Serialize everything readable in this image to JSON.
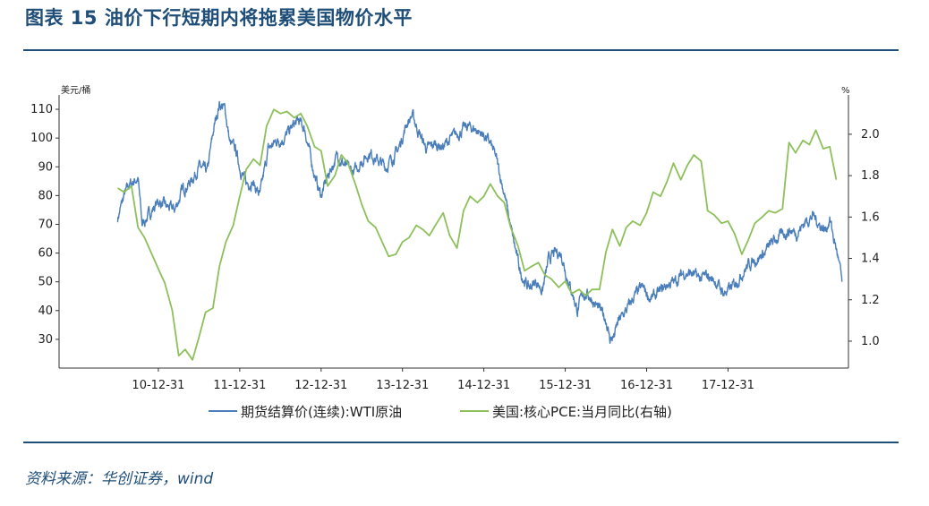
{
  "title": "图表 15  油价下行短期内将拖累美国物价水平",
  "source": "资料来源：华创证券，wind",
  "colors": {
    "title": "#1f4e79",
    "wti": "#4a7ebb",
    "pce": "#8dc05a",
    "axis": "#333333"
  },
  "chart_data": {
    "type": "line",
    "x_tick_labels": [
      "10-12-31",
      "11-12-31",
      "12-12-31",
      "13-12-31",
      "14-12-31",
      "15-12-31",
      "16-12-31",
      "17-12-31"
    ],
    "left_axis": {
      "unit": "美元/桶",
      "ylim": [
        20,
        115
      ],
      "ticks": [
        30,
        40,
        50,
        60,
        70,
        80,
        90,
        100,
        110
      ]
    },
    "right_axis": {
      "unit": "%",
      "ylim": [
        0.87,
        2.19
      ],
      "ticks": [
        "1.0",
        "1.2",
        "1.4",
        "1.6",
        "1.8",
        "2.0"
      ]
    },
    "series": [
      {
        "name": "期货结算价(连续):WTI原油",
        "axis": "left",
        "t": [
          2010.0,
          2010.08,
          2010.15,
          2010.25,
          2010.3,
          2010.4,
          2010.5,
          2010.6,
          2010.7,
          2010.8,
          2010.9,
          2011.0,
          2011.1,
          2011.18,
          2011.25,
          2011.32,
          2011.38,
          2011.45,
          2011.5,
          2011.58,
          2011.65,
          2011.75,
          2011.85,
          2011.95,
          2012.05,
          2012.15,
          2012.22,
          2012.3,
          2012.38,
          2012.45,
          2012.5,
          2012.6,
          2012.7,
          2012.8,
          2012.9,
          2013.0,
          2013.1,
          2013.2,
          2013.3,
          2013.45,
          2013.55,
          2013.62,
          2013.7,
          2013.8,
          2013.9,
          2014.0,
          2014.1,
          2014.2,
          2014.3,
          2014.4,
          2014.5,
          2014.58,
          2014.65,
          2014.75,
          2014.85,
          2014.95,
          2015.05,
          2015.15,
          2015.22,
          2015.3,
          2015.38,
          2015.45,
          2015.52,
          2015.6,
          2015.65,
          2015.72,
          2015.8,
          2015.9,
          2016.0,
          2016.05,
          2016.1,
          2016.15,
          2016.25,
          2016.35,
          2016.45,
          2016.55,
          2016.65,
          2016.75,
          2016.85,
          2016.95,
          2017.05,
          2017.15,
          2017.25,
          2017.35,
          2017.45,
          2017.55,
          2017.65,
          2017.75,
          2017.85,
          2017.95,
          2018.05,
          2018.15,
          2018.25,
          2018.35,
          2018.45,
          2018.55,
          2018.62,
          2018.7,
          2018.75,
          2018.8,
          2018.85,
          2018.9
        ],
        "values": [
          72,
          80,
          84,
          86,
          70,
          74,
          78,
          76,
          75,
          82,
          85,
          90,
          88,
          103,
          112,
          110,
          98,
          96,
          90,
          84,
          85,
          80,
          96,
          99,
          100,
          104,
          106,
          103,
          92,
          84,
          80,
          88,
          94,
          90,
          88,
          92,
          95,
          92,
          90,
          96,
          105,
          108,
          102,
          96,
          98,
          97,
          100,
          102,
          104,
          103,
          101,
          98,
          93,
          81,
          66,
          53,
          48,
          50,
          47,
          58,
          60,
          60,
          52,
          45,
          40,
          46,
          45,
          41,
          37,
          30,
          31,
          36,
          40,
          45,
          48,
          44,
          46,
          49,
          50,
          53,
          53,
          51,
          52,
          50,
          46,
          48,
          52,
          56,
          58,
          60,
          64,
          66,
          68,
          67,
          71,
          73,
          70,
          68,
          72,
          65,
          59,
          50
        ]
      },
      {
        "name": "美国:核心PCE:当月同比(右轴)",
        "axis": "right",
        "t": [
          2010.0,
          2010.08,
          2010.17,
          2010.25,
          2010.33,
          2010.42,
          2010.5,
          2010.58,
          2010.67,
          2010.75,
          2010.83,
          2010.92,
          2011.0,
          2011.08,
          2011.17,
          2011.25,
          2011.33,
          2011.42,
          2011.5,
          2011.58,
          2011.67,
          2011.75,
          2011.83,
          2011.92,
          2012.0,
          2012.08,
          2012.17,
          2012.25,
          2012.33,
          2012.42,
          2012.5,
          2012.58,
          2012.67,
          2012.75,
          2012.83,
          2012.92,
          2013.0,
          2013.08,
          2013.17,
          2013.25,
          2013.33,
          2013.42,
          2013.5,
          2013.58,
          2013.67,
          2013.75,
          2013.83,
          2013.92,
          2014.0,
          2014.08,
          2014.17,
          2014.25,
          2014.33,
          2014.42,
          2014.5,
          2014.58,
          2014.67,
          2014.75,
          2014.83,
          2014.92,
          2015.0,
          2015.08,
          2015.17,
          2015.25,
          2015.33,
          2015.42,
          2015.5,
          2015.58,
          2015.67,
          2015.75,
          2015.83,
          2015.92,
          2016.0,
          2016.08,
          2016.17,
          2016.25,
          2016.33,
          2016.42,
          2016.5,
          2016.58,
          2016.67,
          2016.75,
          2016.83,
          2016.92,
          2017.0,
          2017.08,
          2017.17,
          2017.25,
          2017.33,
          2017.42,
          2017.5,
          2017.58,
          2017.67,
          2017.75,
          2017.83,
          2017.92,
          2018.0,
          2018.08,
          2018.17,
          2018.25,
          2018.33,
          2018.42,
          2018.5,
          2018.58,
          2018.67,
          2018.75,
          2018.83
        ],
        "values": [
          1.74,
          1.72,
          1.75,
          1.55,
          1.5,
          1.42,
          1.35,
          1.28,
          1.15,
          0.93,
          0.96,
          0.91,
          1.02,
          1.14,
          1.16,
          1.36,
          1.48,
          1.56,
          1.7,
          1.83,
          1.88,
          1.85,
          2.04,
          2.12,
          2.1,
          2.11,
          2.08,
          2.1,
          2.04,
          1.94,
          1.92,
          1.75,
          1.8,
          1.9,
          1.86,
          1.76,
          1.66,
          1.58,
          1.55,
          1.48,
          1.41,
          1.42,
          1.48,
          1.5,
          1.56,
          1.54,
          1.51,
          1.57,
          1.62,
          1.51,
          1.45,
          1.63,
          1.7,
          1.67,
          1.7,
          1.76,
          1.7,
          1.67,
          1.55,
          1.46,
          1.34,
          1.36,
          1.38,
          1.32,
          1.3,
          1.26,
          1.29,
          1.23,
          1.25,
          1.22,
          1.25,
          1.25,
          1.43,
          1.54,
          1.46,
          1.55,
          1.58,
          1.56,
          1.62,
          1.72,
          1.7,
          1.77,
          1.86,
          1.78,
          1.85,
          1.9,
          1.87,
          1.63,
          1.61,
          1.57,
          1.58,
          1.52,
          1.42,
          1.49,
          1.57,
          1.6,
          1.63,
          1.62,
          1.64,
          1.96,
          1.91,
          1.97,
          1.95,
          2.02,
          1.93,
          1.94,
          1.78
        ]
      }
    ]
  }
}
